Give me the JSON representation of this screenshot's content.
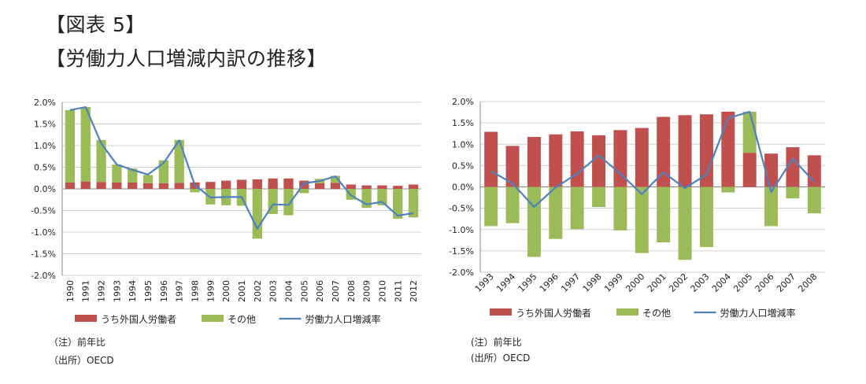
{
  "header": {
    "figure_number": "【図表 5】",
    "figure_title": "【労働力人口増減内訳の推移】"
  },
  "colors": {
    "foreign": "#C0504D",
    "other": "#9BBB59",
    "rate": "#4F81BD",
    "grid": "#D0D0D0"
  },
  "chart_data": [
    {
      "type": "bar",
      "stacked": true,
      "categories": [
        "1990",
        "1991",
        "1992",
        "1993",
        "1994",
        "1995",
        "1996",
        "1997",
        "1998",
        "1999",
        "2000",
        "2001",
        "2002",
        "2003",
        "2004",
        "2005",
        "2006",
        "2007",
        "2008",
        "2009",
        "2010",
        "2011",
        "2012"
      ],
      "series": [
        {
          "name": "うち外国人労働者",
          "kind": "bar",
          "color": "#C0504D",
          "values": [
            0.15,
            0.17,
            0.16,
            0.15,
            0.15,
            0.13,
            0.13,
            0.14,
            0.15,
            0.16,
            0.19,
            0.21,
            0.22,
            0.24,
            0.24,
            0.19,
            0.13,
            0.14,
            0.1,
            0.08,
            0.08,
            0.07,
            0.1
          ]
        },
        {
          "name": "その他",
          "kind": "bar",
          "color": "#9BBB59",
          "values": [
            1.67,
            1.72,
            0.97,
            0.41,
            0.32,
            0.19,
            0.53,
            0.99,
            -0.08,
            -0.36,
            -0.38,
            -0.39,
            -1.15,
            -0.58,
            -0.61,
            -0.1,
            0.1,
            0.16,
            -0.25,
            -0.44,
            -0.38,
            -0.69,
            -0.66
          ]
        },
        {
          "name": "労働力人口増減率",
          "kind": "line",
          "color": "#4F81BD",
          "values": [
            1.82,
            1.89,
            1.05,
            0.56,
            0.44,
            0.33,
            0.6,
            1.12,
            0.09,
            -0.2,
            -0.19,
            -0.19,
            -0.92,
            -0.36,
            -0.37,
            0.13,
            0.18,
            0.29,
            -0.15,
            -0.36,
            -0.3,
            -0.62,
            -0.56
          ]
        }
      ],
      "y_ticks": [
        "2.0%",
        "1.5%",
        "1.0%",
        "0.5%",
        "0.0%",
        "-0.5%",
        "-1.0%",
        "-1.5%",
        "-2.0%"
      ],
      "ylim": [
        -2.0,
        2.0
      ],
      "grid": true,
      "legend": "bottom",
      "notes": [
        "（注）前年比",
        "（出所）OECD"
      ]
    },
    {
      "type": "bar",
      "stacked": true,
      "categories": [
        "1993",
        "1994",
        "1995",
        "1996",
        "1997",
        "1998",
        "1999",
        "2000",
        "2001",
        "2002",
        "2003",
        "2004",
        "2005",
        "2006",
        "2007",
        "2008"
      ],
      "series": [
        {
          "name": "うち外国人労働者",
          "kind": "bar",
          "color": "#C0504D",
          "values": [
            1.29,
            0.96,
            1.17,
            1.23,
            1.3,
            1.21,
            1.33,
            1.38,
            1.64,
            1.68,
            1.7,
            1.76,
            0.8,
            0.78,
            0.93,
            0.74
          ]
        },
        {
          "name": "その他",
          "kind": "bar",
          "color": "#9BBB59",
          "values": [
            -0.92,
            -0.85,
            -1.64,
            -1.22,
            -0.99,
            -0.47,
            -1.02,
            -1.55,
            -1.3,
            -1.71,
            -1.41,
            -0.13,
            0.96,
            -0.92,
            -0.27,
            -0.62
          ]
        },
        {
          "name": "労働力人口増減率",
          "kind": "line",
          "color": "#4F81BD",
          "values": [
            0.37,
            0.08,
            -0.47,
            -0.01,
            0.31,
            0.74,
            0.31,
            -0.17,
            0.34,
            -0.03,
            0.29,
            1.61,
            1.76,
            -0.12,
            0.66,
            0.12
          ]
        }
      ],
      "y_ticks": [
        "2.0%",
        "1.5%",
        "1.0%",
        "0.5%",
        "0.0%",
        "-0.5%",
        "-1.0%",
        "-1.5%",
        "-2.0%"
      ],
      "ylim": [
        -2.0,
        2.0
      ],
      "grid": true,
      "legend": "bottom",
      "notes": [
        "(注）前年比",
        "(出所）OECD"
      ]
    }
  ]
}
